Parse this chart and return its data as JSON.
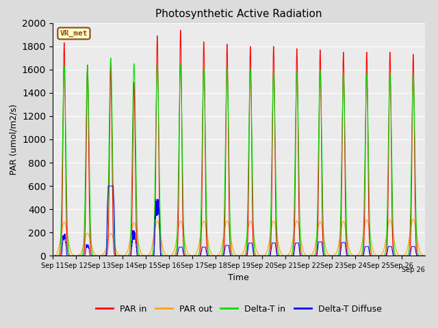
{
  "title": "Photosynthetic Active Radiation",
  "xlabel": "Time",
  "ylabel": "PAR (umol/m2/s)",
  "ylim": [
    0,
    2000
  ],
  "yticks": [
    0,
    200,
    400,
    600,
    800,
    1000,
    1200,
    1400,
    1600,
    1800,
    2000
  ],
  "x_tick_labels": [
    "Sep 11",
    "Sep 12",
    "Sep 13",
    "Sep 14",
    "Sep 15",
    "Sep 16",
    "Sep 17",
    "Sep 18",
    "Sep 19",
    "Sep 20",
    "Sep 21",
    "Sep 22",
    "Sep 23",
    "Sep 24",
    "Sep 25",
    "Sep 26"
  ],
  "colors": {
    "par_in": "#FF0000",
    "par_out": "#FFA500",
    "delta_t_in": "#00DD00",
    "delta_t_diffuse": "#0000FF"
  },
  "bg_color": "#E8E8E8",
  "plot_bg_color": "#EBEBEB",
  "legend_labels": [
    "PAR in",
    "PAR out",
    "Delta-T in",
    "Delta-T Diffuse"
  ],
  "vr_met_label": "VR_met",
  "vr_met_bg": "#FFFFCC",
  "vr_met_border": "#8B4513",
  "title_fontsize": 11,
  "axis_fontsize": 9,
  "tick_fontsize": 7,
  "legend_fontsize": 9,
  "par_in_peaks": [
    1830,
    1640,
    1630,
    1490,
    1890,
    1940,
    1840,
    1820,
    1800,
    1800,
    1780,
    1770,
    1750,
    1750,
    1750,
    1730
  ],
  "par_out_peaks": [
    290,
    195,
    195,
    285,
    300,
    300,
    300,
    300,
    300,
    300,
    300,
    295,
    295,
    310,
    310,
    315
  ],
  "delta_t_in_peaks": [
    1630,
    1630,
    1700,
    1650,
    1650,
    1640,
    1620,
    1620,
    1600,
    1590,
    1580,
    1590,
    1570,
    1560,
    1570,
    1560
  ],
  "delta_t_diff_peaks": [
    190,
    100,
    600,
    220,
    490,
    75,
    75,
    90,
    110,
    110,
    110,
    120,
    115,
    80,
    80,
    80
  ],
  "n_days": 16,
  "points_per_day": 200
}
